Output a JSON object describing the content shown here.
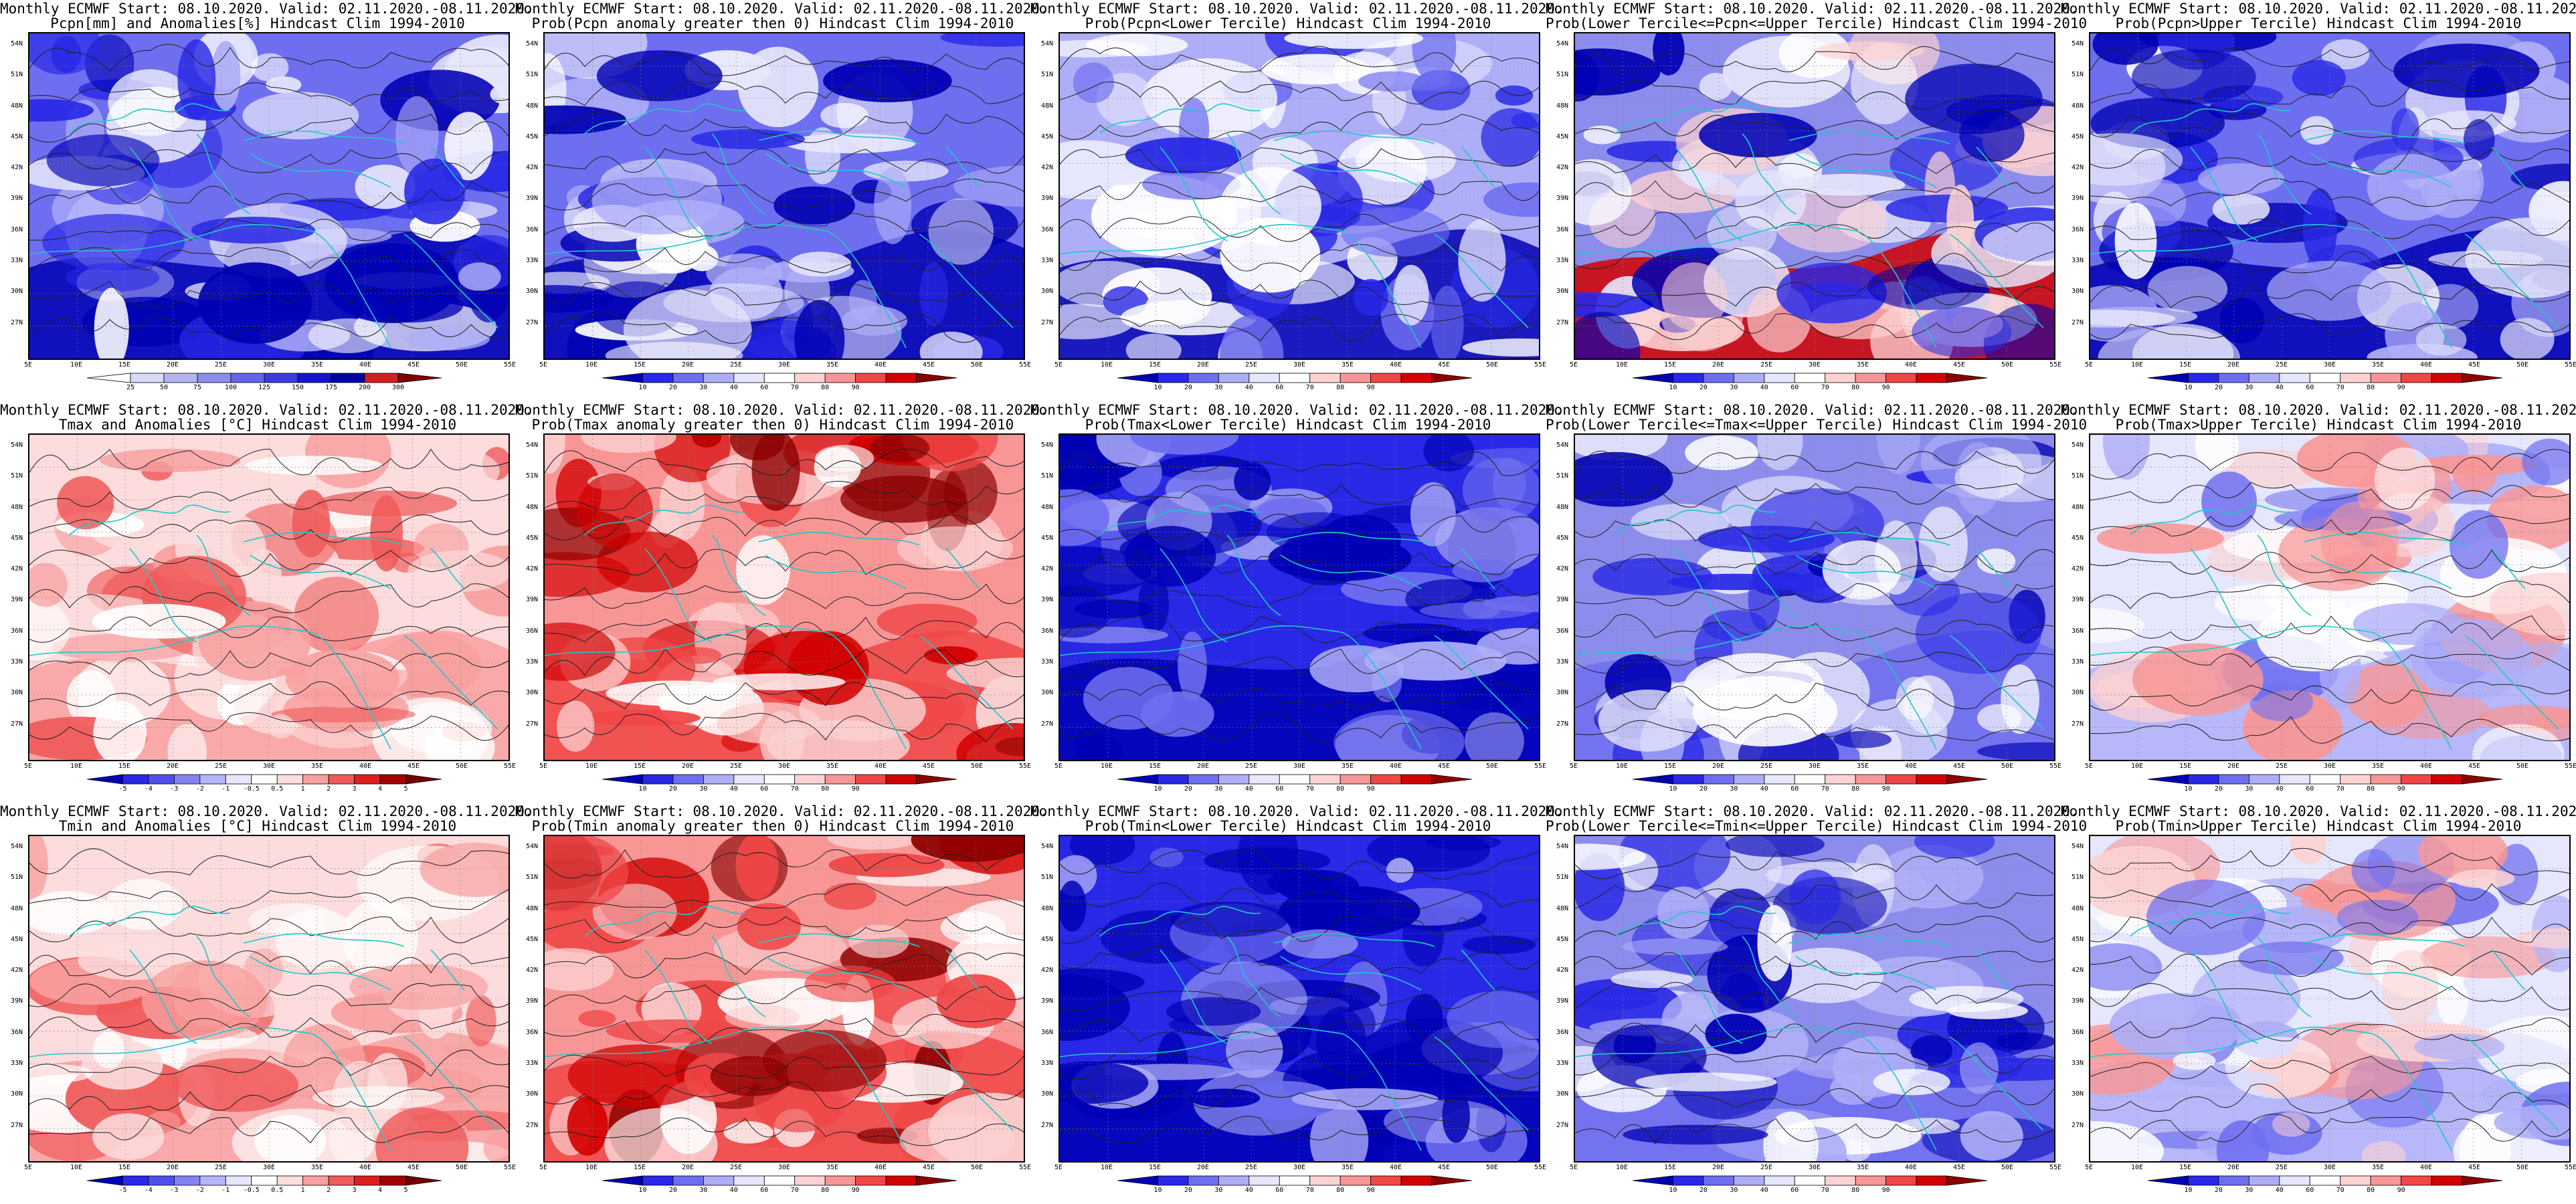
{
  "title_line1": "Monthly ECMWF Start: 08.10.2020. Valid: 02.11.2020.-08.11.2020.",
  "lat_labels": [
    "54N",
    "51N",
    "48N",
    "45N",
    "42N",
    "39N",
    "36N",
    "33N",
    "30N",
    "27N"
  ],
  "lon_labels": [
    "5E",
    "10E",
    "15E",
    "20E",
    "25E",
    "30E",
    "35E",
    "40E",
    "45E",
    "50E",
    "55E"
  ],
  "colorbars": {
    "pcpn": [
      "25",
      "50",
      "75",
      "100",
      "125",
      "150",
      "175",
      "200",
      "300"
    ],
    "prob": [
      "10",
      "20",
      "30",
      "40",
      "60",
      "70",
      "80",
      "90"
    ],
    "anom": [
      "-5",
      "-4",
      "-3",
      "-2",
      "-1",
      "-0.5",
      "0.5",
      "1",
      "2",
      "3",
      "4",
      "5"
    ]
  },
  "panels": [
    {
      "subtitle": "Pcpn[mm] and Anomalies[%] Hindcast Clim 1994-2010",
      "cbar": "pcpn",
      "scheme": "blue_strong"
    },
    {
      "subtitle": "Prob(Pcpn anomaly greater then 0) Hindcast Clim 1994-2010",
      "cbar": "prob",
      "scheme": "blue_strong"
    },
    {
      "subtitle": "Prob(Pcpn<Lower Tercile) Hindcast Clim 1994-2010",
      "cbar": "prob",
      "scheme": "blue_light"
    },
    {
      "subtitle": "Prob(Lower Tercile<=Pcpn<=Upper Tercile) Hindcast Clim 1994-2010",
      "cbar": "prob",
      "scheme": "blue_red_south"
    },
    {
      "subtitle": "Prob(Pcpn>Upper Tercile) Hindcast Clim 1994-2010",
      "cbar": "prob",
      "scheme": "blue_strong"
    },
    {
      "subtitle": "Tmax and Anomalies [°C] Hindcast Clim 1994-2010",
      "cbar": "anom",
      "scheme": "red_light"
    },
    {
      "subtitle": "Prob(Tmax anomaly greater then 0) Hindcast Clim 1994-2010",
      "cbar": "prob",
      "scheme": "red_strong"
    },
    {
      "subtitle": "Prob(Tmax<Lower Tercile) Hindcast Clim 1994-2010",
      "cbar": "prob",
      "scheme": "blue_deep"
    },
    {
      "subtitle": "Prob(Lower Tercile<=Tmax<=Upper Tercile) Hindcast Clim 1994-2010",
      "cbar": "prob",
      "scheme": "blue_mixed"
    },
    {
      "subtitle": "Prob(Tmax>Upper Tercile) Hindcast Clim 1994-2010",
      "cbar": "prob",
      "scheme": "mixed_light"
    },
    {
      "subtitle": "Tmin and Anomalies [°C] Hindcast Clim 1994-2010",
      "cbar": "anom",
      "scheme": "red_light"
    },
    {
      "subtitle": "Prob(Tmin anomaly greater then 0) Hindcast Clim 1994-2010",
      "cbar": "prob",
      "scheme": "red_strong"
    },
    {
      "subtitle": "Prob(Tmin<Lower Tercile) Hindcast Clim 1994-2010",
      "cbar": "prob",
      "scheme": "blue_deep"
    },
    {
      "subtitle": "Prob(Lower Tercile<=Tmin<=Upper Tercile) Hindcast Clim 1994-2010",
      "cbar": "prob",
      "scheme": "blue_mixed"
    },
    {
      "subtitle": "Prob(Tmin>Upper Tercile) Hindcast Clim 1994-2010",
      "cbar": "prob",
      "scheme": "mixed_light"
    }
  ],
  "colors": {
    "pcpn": [
      "#ffffff",
      "#d8d8f8",
      "#b4b4f0",
      "#8c8cec",
      "#6464e8",
      "#3c3cdc",
      "#1414cc",
      "#0000a0",
      "#d02020",
      "#800000"
    ],
    "prob": [
      "#0000b4",
      "#2828e6",
      "#6e6ef0",
      "#aeaef8",
      "#e6e6fc",
      "#ffffff",
      "#fcd2d2",
      "#f89696",
      "#f04646",
      "#d20000",
      "#8c0000"
    ],
    "anom": [
      "#0000b4",
      "#2828e6",
      "#5050ee",
      "#8282f4",
      "#b4b4f8",
      "#e6e6fc",
      "#ffffff",
      "#fcdcdc",
      "#f8a0a0",
      "#f05a5a",
      "#dc1e1e",
      "#a00000",
      "#700000"
    ],
    "coast": "#20c8c8",
    "contour": "#202020"
  }
}
